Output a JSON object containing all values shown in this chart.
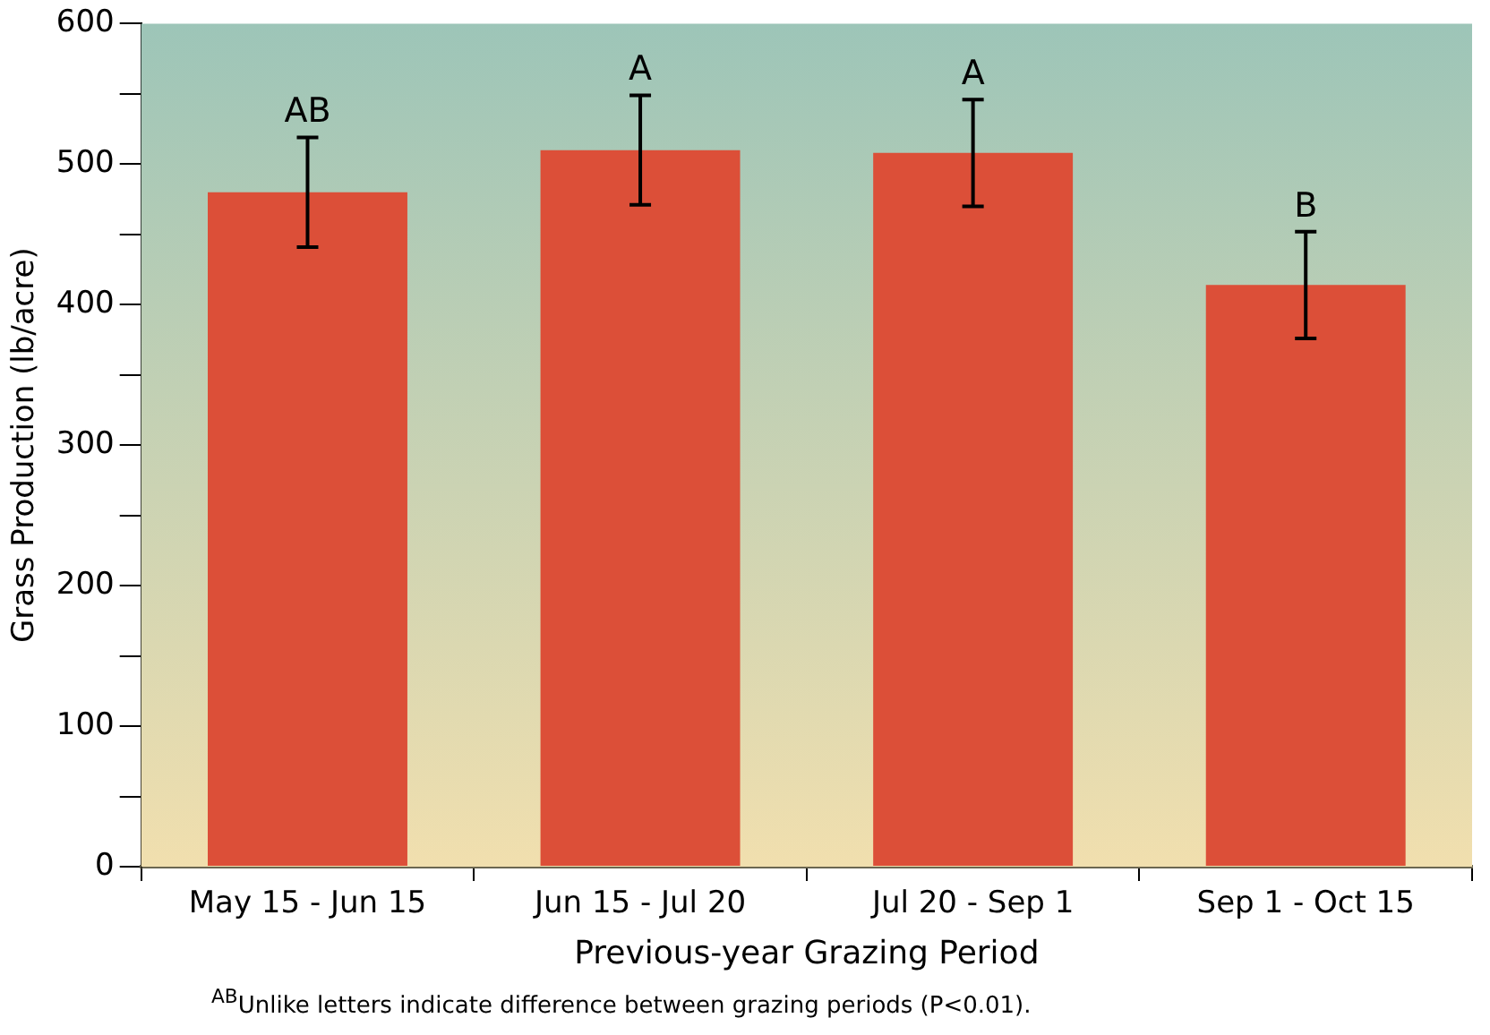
{
  "chart_data": {
    "type": "bar",
    "xlabel": "Previous-year Grazing Period",
    "ylabel": "Grass Production (lb/acre)",
    "categories": [
      "May 15 - Jun 15",
      "Jun 15 - Jul 20",
      "Jul 20 - Sep 1",
      "Sep 1 - Oct 15"
    ],
    "values": [
      480,
      510,
      508,
      414
    ],
    "errors": [
      39,
      39,
      38,
      38
    ],
    "color": "#dc4f38",
    "ylim": [
      0,
      600
    ],
    "yticks": [
      0,
      {
        "value": 50,
        "label": null
      },
      100,
      {
        "value": 150,
        "label": null
      },
      200,
      {
        "value": 250,
        "label": null
      },
      300,
      {
        "value": 350,
        "label": null
      },
      400,
      {
        "value": 450,
        "label": null
      },
      500,
      {
        "value": 550,
        "label": null
      },
      600
    ],
    "annotations": [
      "AB",
      "A",
      "A",
      "B",
      "$^{AB}$Unlike letters indicate difference between grazing periods (P<0.01)."
    ],
    "legend": false
  }
}
